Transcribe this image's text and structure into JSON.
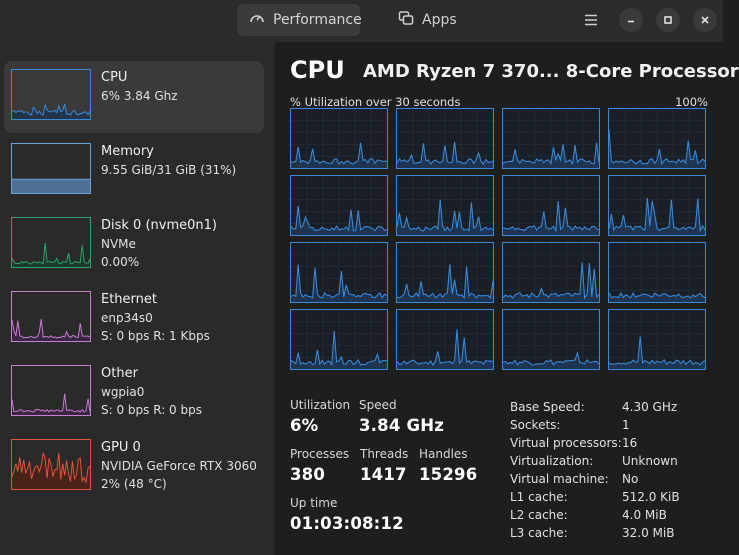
{
  "header": {
    "tabs": [
      {
        "label": "Performance",
        "icon": "gauge-icon",
        "active": true
      },
      {
        "label": "Apps",
        "icon": "apps-icon",
        "active": false
      }
    ],
    "window_buttons": [
      "menu-icon",
      "minimize-icon",
      "maximize-icon",
      "close-icon"
    ]
  },
  "sidebar": {
    "items": [
      {
        "title": "CPU",
        "line1": "6% 3.84 Ghz",
        "line2": "",
        "color": "#3a8ad8",
        "fill": "#23344a",
        "active": true
      },
      {
        "title": "Memory",
        "line1": "9.55 GiB/31 GiB (31%)",
        "line2": "",
        "color": "#6aa0d6",
        "fill": "#4f6f93",
        "active": false
      },
      {
        "title": "Disk 0 (nvme0n1)",
        "line1": "NVMe",
        "line2": "0.00%",
        "color": "#2ea36b",
        "fill": "#1a3a2b",
        "active": false
      },
      {
        "title": "Ethernet",
        "line1": "enp34s0",
        "line2": "S: 0 bps R: 1 Kbps",
        "color": "#c77fd0",
        "fill": "#3a2640",
        "active": false
      },
      {
        "title": "Other",
        "line1": "wgpia0",
        "line2": "S: 0 bps R: 0 bps",
        "color": "#c77fd0",
        "fill": "#3a2640",
        "active": false
      },
      {
        "title": "GPU 0",
        "line1": "NVIDIA GeForce RTX 3060",
        "line2": "2% (48 °C)",
        "color": "#e0553d",
        "fill": "#4a2219",
        "active": false
      }
    ]
  },
  "main": {
    "title": "CPU",
    "model": "AMD Ryzen 7 370... 8-Core Processor",
    "util_label": "% Utilization over 30 seconds",
    "util_max": "100%",
    "cores": 16,
    "stats": {
      "utilization": {
        "label": "Utilization",
        "value": "6%"
      },
      "speed": {
        "label": "Speed",
        "value": "3.84 GHz"
      },
      "processes": {
        "label": "Processes",
        "value": "380"
      },
      "threads": {
        "label": "Threads",
        "value": "1417"
      },
      "handles": {
        "label": "Handles",
        "value": "15296"
      },
      "uptime": {
        "label": "Up time",
        "value": "01:03:08:12"
      }
    },
    "specs": [
      {
        "k": "Base Speed:",
        "v": "4.30 GHz"
      },
      {
        "k": "Sockets:",
        "v": "1"
      },
      {
        "k": "Virtual processors:",
        "v": "16"
      },
      {
        "k": "Virtualization:",
        "v": "Unknown"
      },
      {
        "k": "Virtual machine:",
        "v": "No"
      },
      {
        "k": "L1 cache:",
        "v": "512.0 KiB"
      },
      {
        "k": "L2 cache:",
        "v": "4.0 MiB"
      },
      {
        "k": "L3 cache:",
        "v": "32.0 MiB"
      }
    ]
  }
}
